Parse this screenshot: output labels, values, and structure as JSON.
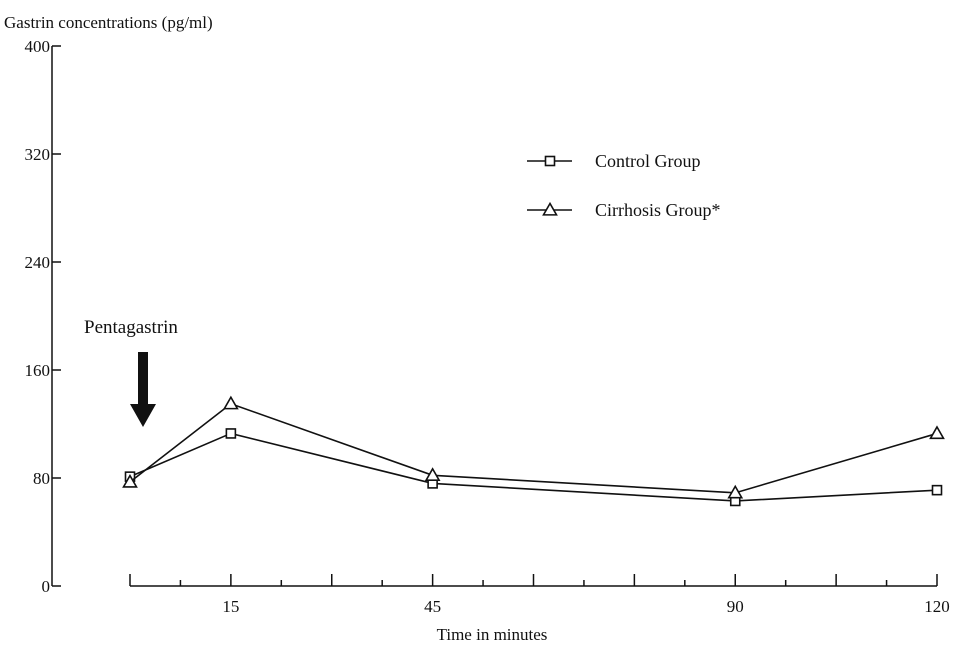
{
  "chart_data": {
    "type": "line",
    "ylabel": "Gastrin concentrations (pg/ml)",
    "xlabel": "Time in minutes",
    "ylim": [
      0,
      400
    ],
    "yticks": [
      "0",
      "80",
      "160",
      "240",
      "320",
      "400"
    ],
    "xticks": [
      "15",
      "45",
      "90",
      "120"
    ],
    "x": [
      0,
      15,
      45,
      90,
      120
    ],
    "series": [
      {
        "name": "Control Group",
        "marker": "square",
        "values": [
          81,
          113,
          76,
          63,
          71
        ]
      },
      {
        "name": "Cirrhosis Group*",
        "marker": "triangle",
        "values": [
          77,
          135,
          82,
          69,
          113
        ]
      }
    ],
    "legend_position": "top-right",
    "annotation": {
      "text": "Pentagastrin",
      "at_x": 0
    },
    "colors": {
      "ink": "#111111",
      "background": "#ffffff"
    }
  }
}
